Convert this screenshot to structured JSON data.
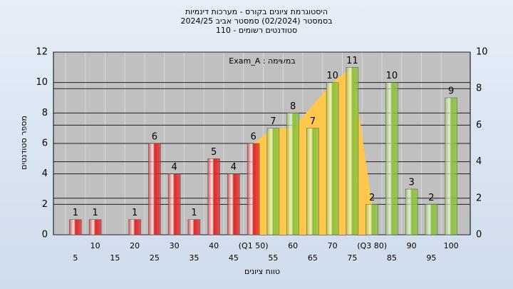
{
  "chart_data": {
    "type": "bar",
    "title": [
      "היסטוגרמת ציונים בקורס - מערכות דינמיות",
      "בסמסטר  (02/2024)  סמסטר אביב  2024/25",
      "סטודנטים רשומים - 110"
    ],
    "annotation": "במשימה : Exam_A",
    "ylabel": "מספר סטודנטים",
    "xlabel": "טווח ציונים",
    "categories": [
      "5",
      "10",
      "15",
      "20",
      "25",
      "30",
      "35",
      "40",
      "45",
      "(Q1 50)",
      "55",
      "60",
      "65",
      "70",
      "75",
      "(Q3 80)",
      "85",
      "90",
      "95",
      "100"
    ],
    "values": [
      1,
      1,
      0,
      1,
      6,
      4,
      1,
      5,
      4,
      6,
      7,
      8,
      7,
      10,
      11,
      2,
      10,
      3,
      2,
      9
    ],
    "colors": [
      "#e02828",
      "#e02828",
      "#e02828",
      "#e02828",
      "#e02828",
      "#e02828",
      "#e02828",
      "#e02828",
      "#e02828",
      "#e02828",
      "#8cc43c",
      "#8cc43c",
      "#8cc43c",
      "#8cc43c",
      "#8cc43c",
      "#8cc43c",
      "#8cc43c",
      "#8cc43c",
      "#8cc43c",
      "#8cc43c"
    ],
    "iqr_area": {
      "color": "#ffc84a",
      "values": [
        null,
        null,
        null,
        null,
        null,
        null,
        null,
        null,
        null,
        6,
        7,
        7,
        8.5,
        10,
        11,
        2,
        null,
        null,
        null,
        null
      ]
    },
    "ylim": [
      0,
      12
    ],
    "yticks": [
      0,
      2,
      4,
      6,
      8,
      10,
      12
    ],
    "y2lim": [
      0,
      10
    ],
    "y2ticks": [
      0,
      2,
      4,
      6,
      8,
      10
    ],
    "grid": true
  }
}
